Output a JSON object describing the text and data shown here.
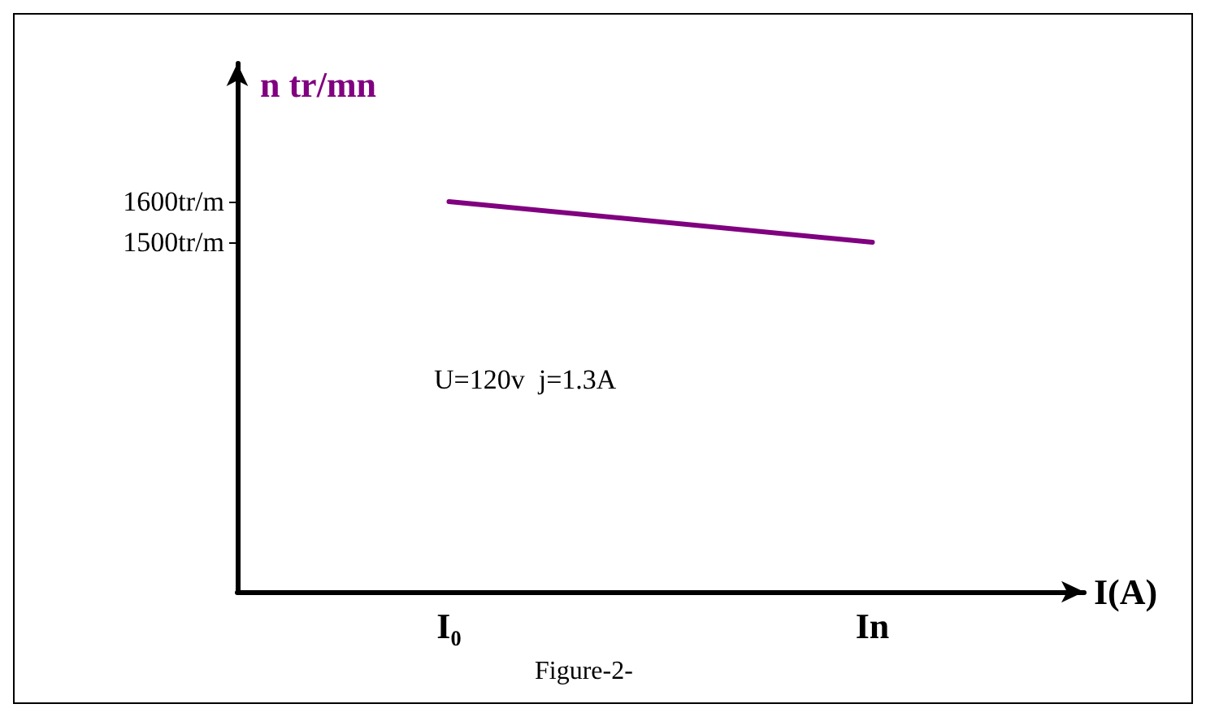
{
  "chart_data": {
    "type": "line",
    "ylabel": "n tr/mn",
    "xlabel": "I(A)",
    "categories": [
      "I₀",
      "In"
    ],
    "series": [
      {
        "color": "#800080",
        "values": [
          1600,
          1500
        ]
      }
    ],
    "ylim": [
      640,
      1940
    ],
    "yticks": [
      {
        "value": 1500,
        "label": "1500tr/m"
      },
      {
        "value": 1600,
        "label": "1600tr/m"
      }
    ],
    "annotations": [
      "U=120v  j=1.3A",
      "Figure-2-"
    ],
    "grid": false,
    "marker": "none",
    "line_style": "solid"
  }
}
